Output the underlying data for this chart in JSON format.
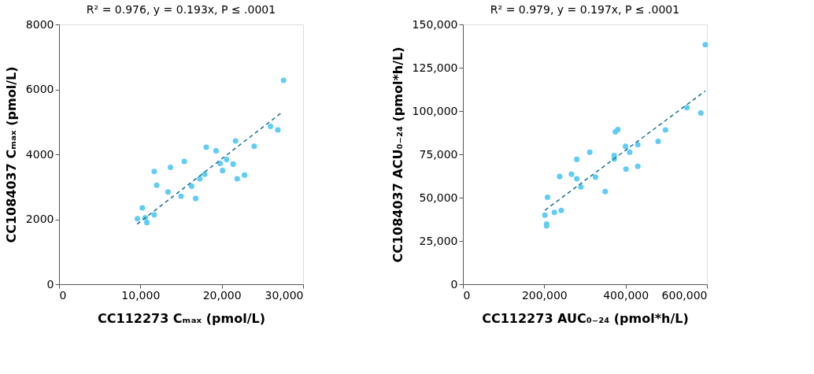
{
  "chart_data": [
    {
      "type": "scatter",
      "title": "R² = 0.976, y = 0.193x, P ≤ .0001",
      "xlabel": "CC112273 Cₘₐₓ (pmol/L)",
      "ylabel": "CC1084037 Cₘₐₓ (pmol/L)",
      "xlim": [
        0,
        30000
      ],
      "xticks": [
        0,
        {
          "value": 10000,
          "label": "10,000"
        },
        {
          "value": 20000,
          "label": "20,000"
        },
        {
          "value": 30000,
          "label": "30,000"
        }
      ],
      "ylim": [
        0,
        8000
      ],
      "yticks": [
        0,
        2000,
        4000,
        6000,
        8000
      ],
      "grid": false,
      "series": [
        {
          "color": "#5fcdf5",
          "x": [
            9640,
            10240,
            10600,
            10800,
            11700,
            11700,
            12000,
            13400,
            13700,
            15000,
            15400,
            16300,
            16800,
            17300,
            17900,
            18100,
            19300,
            19800,
            20100,
            20600,
            21400,
            21700,
            21900,
            22800,
            24000,
            26000,
            26900,
            27600
          ],
          "values": [
            2020,
            2350,
            2050,
            1900,
            3470,
            2140,
            3050,
            2840,
            3600,
            2710,
            3780,
            3020,
            2640,
            3250,
            3390,
            4220,
            4110,
            3720,
            3500,
            3840,
            3700,
            4410,
            3250,
            3360,
            4250,
            4860,
            4750,
            6280
          ]
        },
        {
          "type": "line",
          "color": "#1a6e8e",
          "line_style": "dashed",
          "x": [
            9600,
            27300
          ],
          "values": [
            1850,
            5270
          ]
        }
      ]
    },
    {
      "type": "scatter",
      "title": "R² = 0.979, y = 0.197x, P ≤ .0001",
      "xlabel": "CC112273 AUC₀₋₂₄ (pmol*h/L)",
      "ylabel": "CC1084037 ACU₀₋₂₄ (pmol*h/L)",
      "xlim": [
        0,
        600000
      ],
      "xticks": [
        0,
        {
          "value": 200000,
          "label": "200,000"
        },
        {
          "value": 400000,
          "label": "400,000"
        },
        {
          "value": 600000,
          "label": "600,000"
        }
      ],
      "ylim": [
        0,
        150000
      ],
      "yticks": [
        0,
        {
          "value": 25000,
          "label": "25,000"
        },
        {
          "value": 50000,
          "label": "50,000"
        },
        {
          "value": 75000,
          "label": "75,000"
        },
        {
          "value": 100000,
          "label": "100,000"
        },
        {
          "value": 125000,
          "label": "125,000"
        },
        {
          "value": 150000,
          "label": "150,000"
        }
      ],
      "grid": false,
      "series": [
        {
          "color": "#5fcdf5",
          "x": [
            201600,
            205800,
            205800,
            208000,
            225000,
            242000,
            238000,
            267000,
            280000,
            280000,
            290000,
            312000,
            326000,
            350000,
            372000,
            372000,
            375000,
            381000,
            400000,
            401000,
            410000,
            430000,
            430000,
            480000,
            498000,
            551000,
            585000,
            596000
          ],
          "values": [
            39900,
            34700,
            33700,
            50200,
            41500,
            42600,
            62200,
            63500,
            72100,
            60900,
            56100,
            76200,
            61800,
            53500,
            74300,
            72300,
            88000,
            89300,
            79600,
            66500,
            76200,
            80600,
            68100,
            82500,
            89100,
            101900,
            98900,
            138300
          ]
        },
        {
          "type": "line",
          "color": "#1a6e8e",
          "line_style": "dashed",
          "x": [
            201600,
            596000
          ],
          "values": [
            42700,
            111600
          ]
        }
      ]
    }
  ]
}
